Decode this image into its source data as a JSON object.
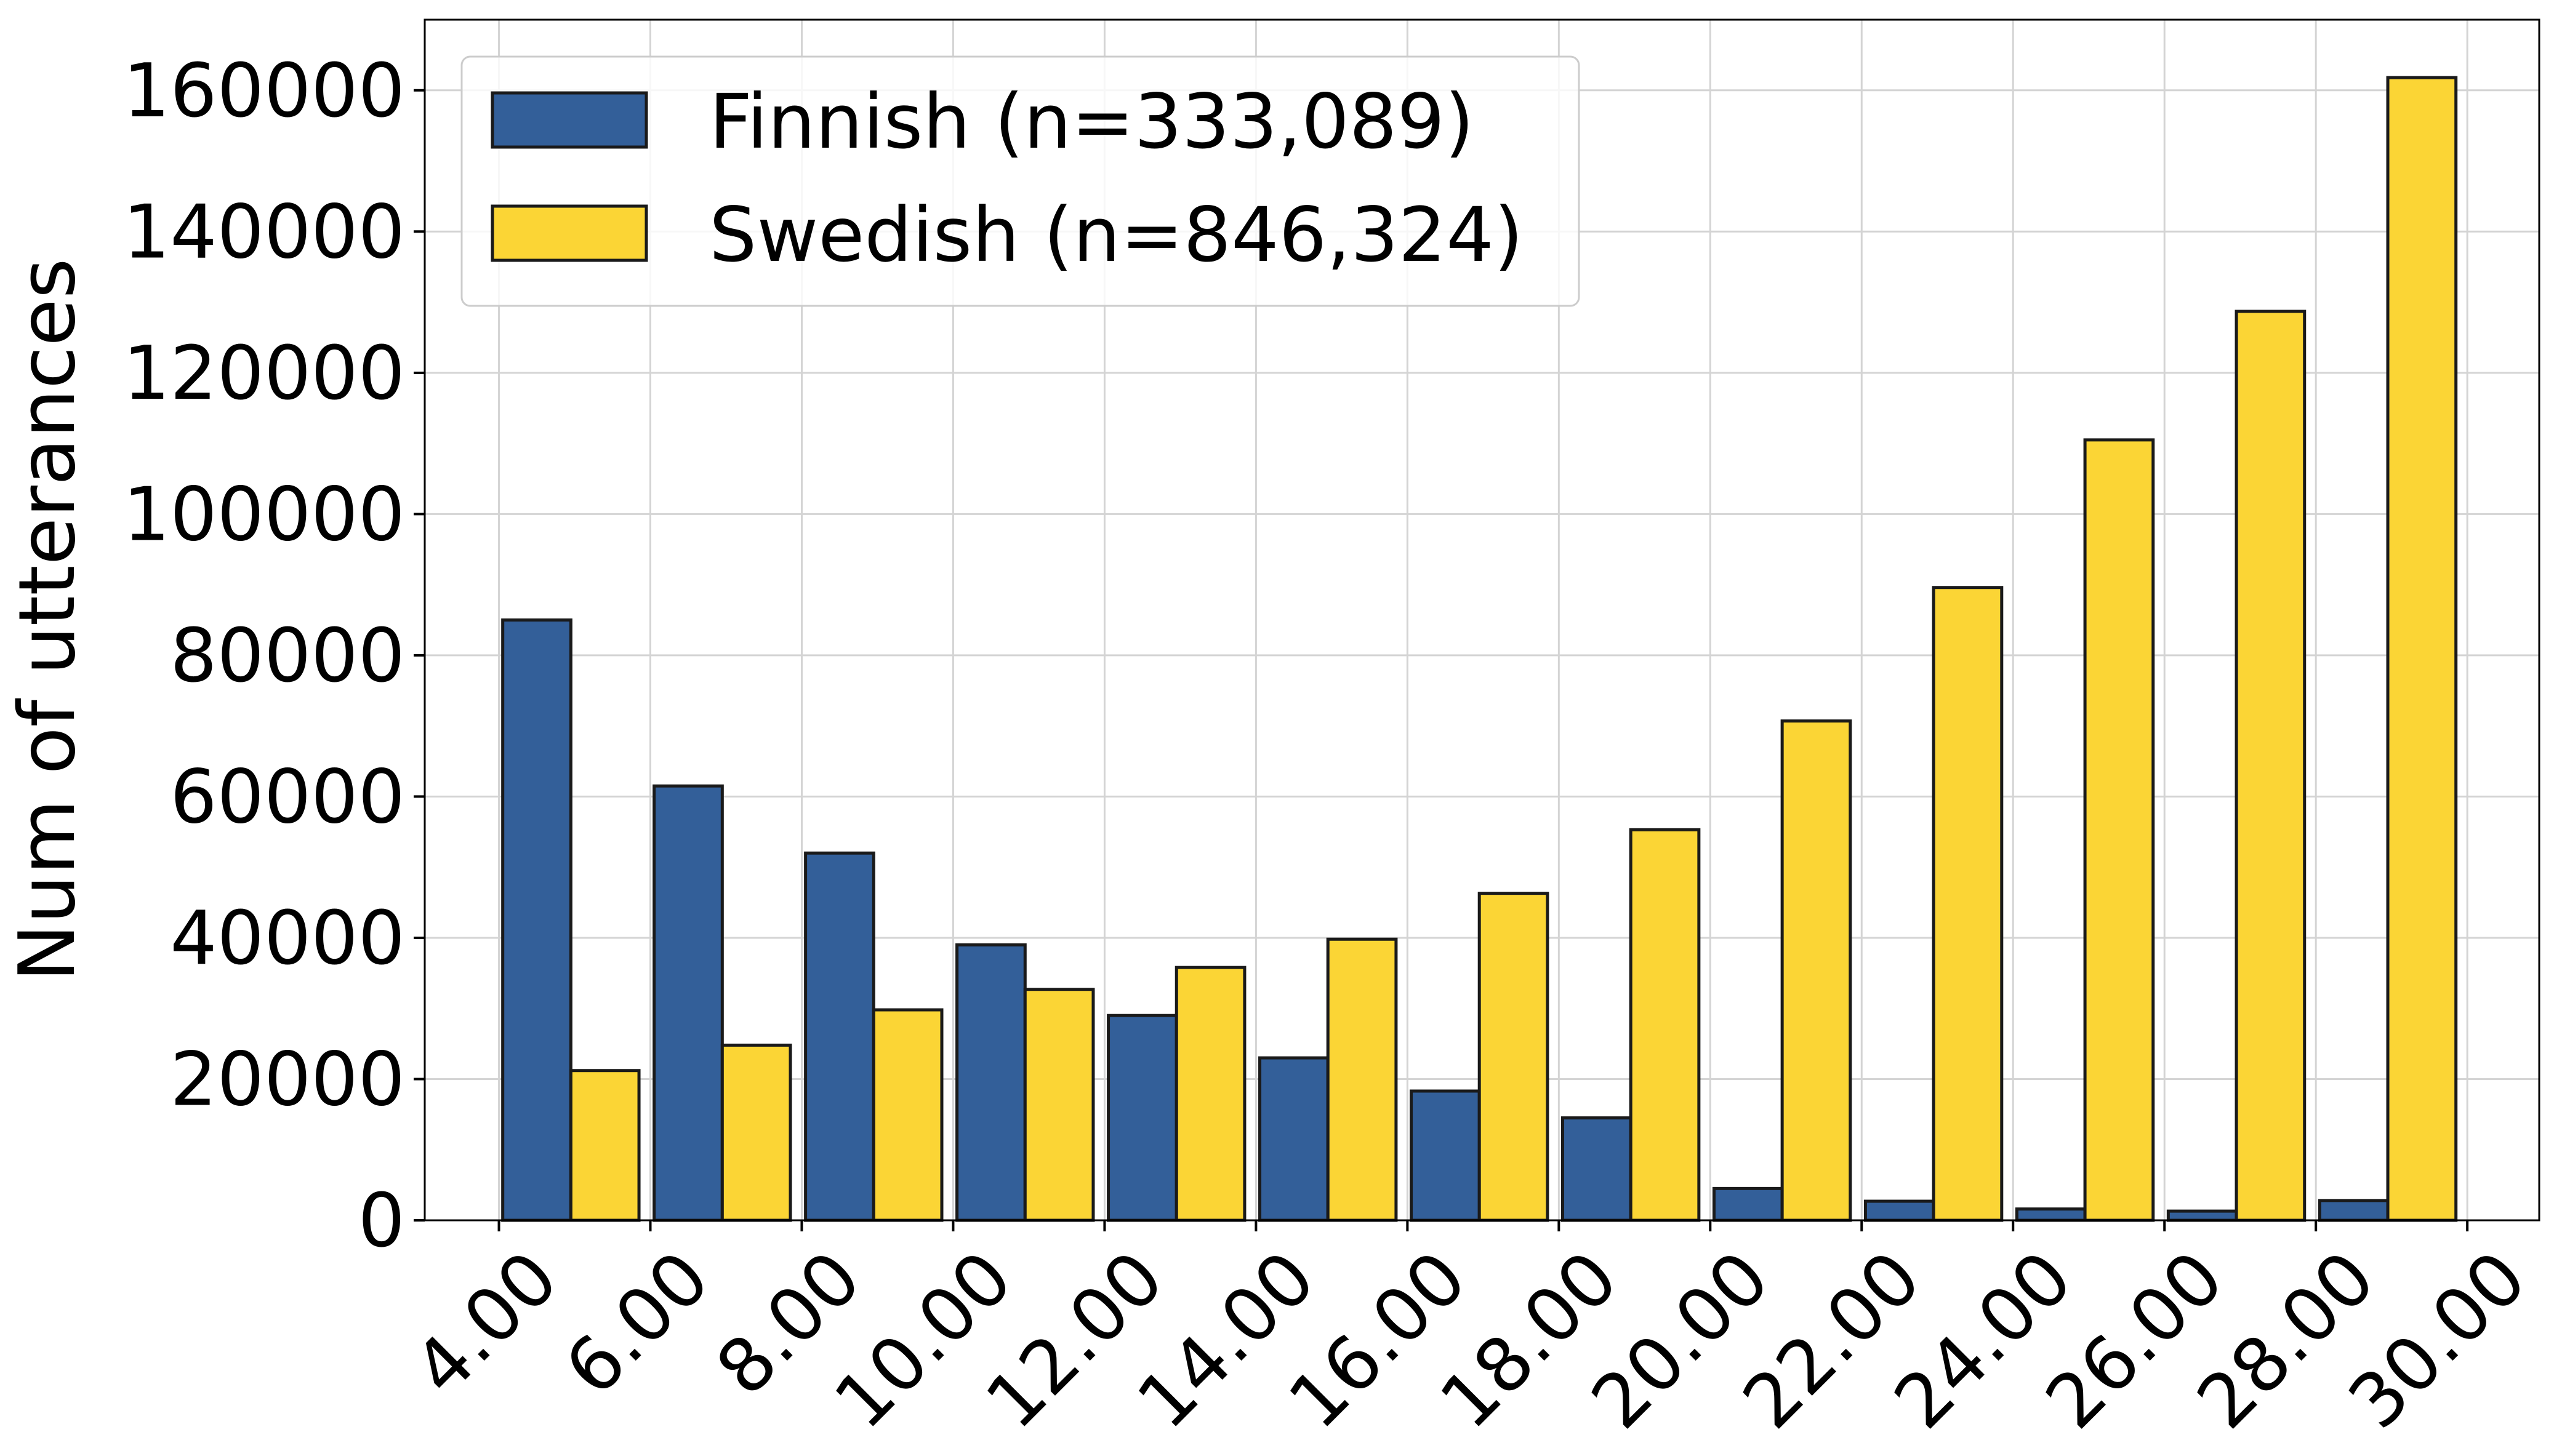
{
  "chart_data": {
    "type": "bar",
    "title": "",
    "xlabel": "",
    "ylabel": "Num of utterances",
    "x_tick_labels": [
      "4.00",
      "6.00",
      "8.00",
      "10.00",
      "12.00",
      "14.00",
      "16.00",
      "18.00",
      "20.00",
      "22.00",
      "24.00",
      "26.00",
      "28.00",
      "30.00"
    ],
    "y_ticks": [
      0,
      20000,
      40000,
      60000,
      80000,
      100000,
      120000,
      140000,
      160000
    ],
    "ylim": [
      0,
      170000
    ],
    "xlim": [
      3.02,
      30.95
    ],
    "bin_start": 4,
    "bin_width": 2,
    "grid": true,
    "legend_position": "upper-left",
    "series": [
      {
        "name": "Finnish (n=333,089)",
        "color": "#335f99",
        "values": [
          85000,
          61500,
          52000,
          39000,
          29000,
          23000,
          18300,
          14500,
          4500,
          2700,
          1600,
          1300,
          2800
        ]
      },
      {
        "name": "Swedish (n=846,324)",
        "color": "#fbd535",
        "values": [
          21200,
          24800,
          29800,
          32700,
          35800,
          39800,
          46300,
          55300,
          70700,
          89600,
          110500,
          128700,
          161800
        ]
      }
    ]
  }
}
